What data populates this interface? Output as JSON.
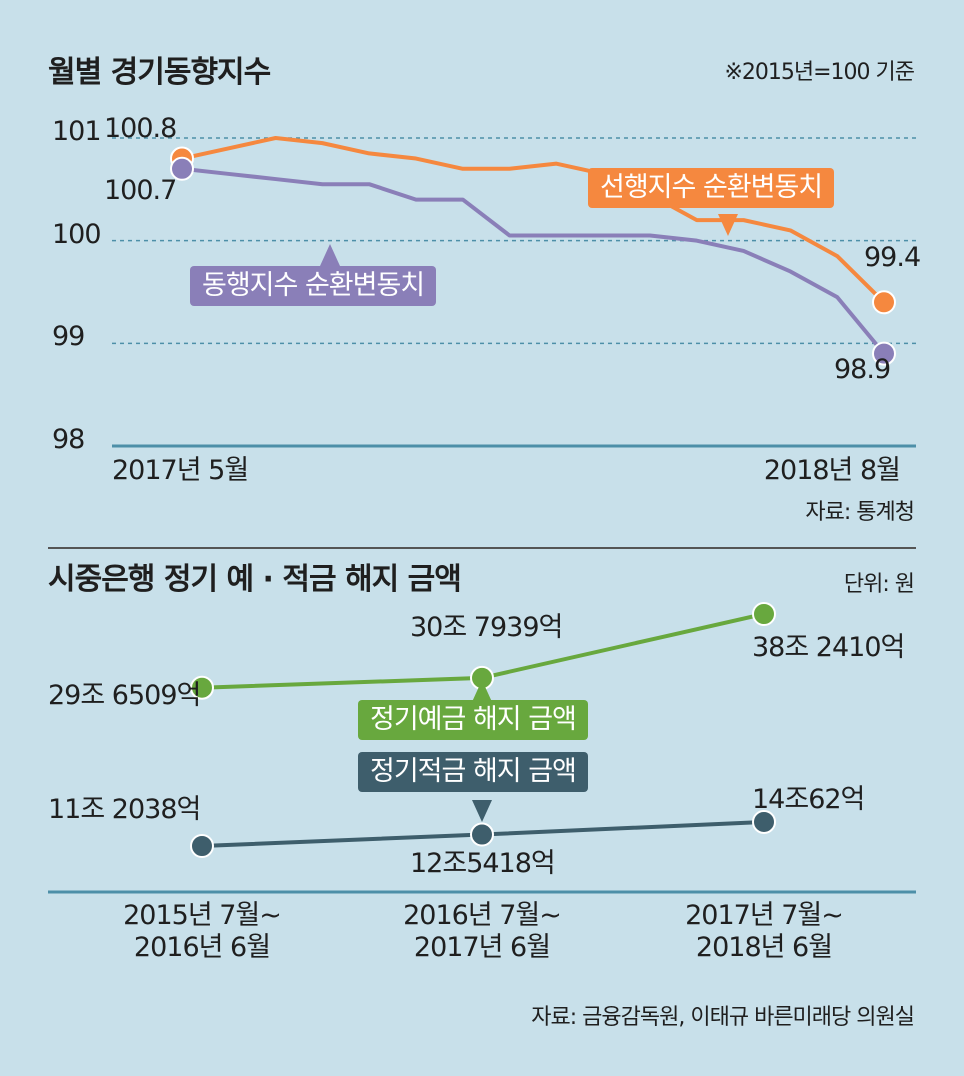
{
  "chart_data": [
    {
      "type": "line",
      "title": "월별 경기동향지수",
      "note": "※2015년=100 기준",
      "source": "자료: 통계청",
      "categories": [
        "2017년 5월",
        null,
        null,
        null,
        null,
        null,
        null,
        null,
        null,
        null,
        null,
        null,
        null,
        null,
        null,
        "2018년 8월"
      ],
      "series": [
        {
          "name": "선행지수 순환변동치",
          "color": "#f5883f",
          "values": [
            100.8,
            100.9,
            101.0,
            100.95,
            100.85,
            100.8,
            100.7,
            100.7,
            100.75,
            100.65,
            100.45,
            100.2,
            100.2,
            100.1,
            99.85,
            99.4
          ]
        },
        {
          "name": "동행지수 순환변동치",
          "color": "#8a7fb8",
          "values": [
            100.7,
            100.65,
            100.6,
            100.55,
            100.55,
            100.4,
            100.4,
            100.05,
            100.05,
            100.05,
            100.05,
            100.0,
            99.9,
            99.7,
            99.45,
            98.9
          ]
        }
      ],
      "ylim": [
        98,
        101
      ],
      "yticks": [
        98,
        99,
        100,
        101
      ],
      "grid": true
    },
    {
      "type": "line",
      "title": "시중은행 정기 예 · 적금 해지 금액",
      "note": "단위: 원",
      "source": "자료: 금융감독원, 이태규 바른미래당 의원실",
      "categories": [
        "2015년 7월~\n2016년 6월",
        "2016년 7월~\n2017년 6월",
        "2017년 7월~\n2018년 6월"
      ],
      "series": [
        {
          "name": "정기예금 해지 금액",
          "color": "#68a83e",
          "values": [
            296509,
            307939,
            382410
          ],
          "value_labels": [
            "29조 6509억",
            "30조 7939억",
            "38조 2410억"
          ]
        },
        {
          "name": "정기적금 해지 금액",
          "color": "#3e5e6c",
          "values": [
            112038,
            125418,
            140062
          ],
          "value_labels": [
            "11조 2038억",
            "12조5418억",
            "14조62억"
          ]
        }
      ]
    }
  ]
}
